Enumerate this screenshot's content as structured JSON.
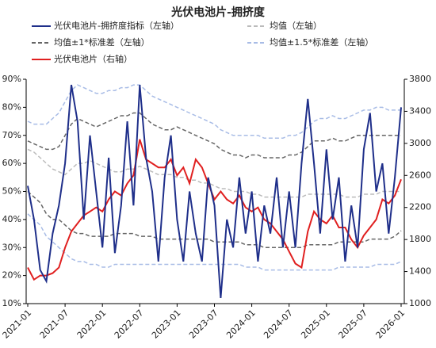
{
  "chart_data": {
    "type": "line",
    "title": "光伏电池片-拥挤度",
    "x": [
      "2021-01",
      "2021-02",
      "2021-03",
      "2021-04",
      "2021-05",
      "2021-06",
      "2021-07",
      "2021-08",
      "2021-09",
      "2021-10",
      "2021-11",
      "2021-12",
      "2022-01",
      "2022-02",
      "2022-03",
      "2022-04",
      "2022-05",
      "2022-06",
      "2022-07",
      "2022-08",
      "2022-09",
      "2022-10",
      "2022-11",
      "2022-12",
      "2023-01",
      "2023-02",
      "2023-03",
      "2023-04",
      "2023-05",
      "2023-06",
      "2023-07",
      "2023-08",
      "2023-09",
      "2023-10",
      "2023-11",
      "2023-12",
      "2024-01",
      "2024-02",
      "2024-03",
      "2024-04",
      "2024-05",
      "2024-06",
      "2024-07",
      "2024-08",
      "2024-09",
      "2024-10",
      "2024-11",
      "2024-12",
      "2025-01",
      "2025-02",
      "2025-03",
      "2025-04",
      "2025-05",
      "2025-06",
      "2025-07",
      "2025-08",
      "2025-09",
      "2025-10",
      "2025-11",
      "2025-12",
      "2026-01"
    ],
    "xticks": [
      "2021-01",
      "2021-07",
      "2022-01",
      "2022-07",
      "2023-01",
      "2023-07",
      "2024-01",
      "2024-07",
      "2025-01",
      "2025-07",
      "2026-01"
    ],
    "ylim": [
      10,
      90
    ],
    "yticks": [
      {
        "value": 10,
        "label": "10%"
      },
      {
        "value": 20,
        "label": "20%"
      },
      {
        "value": 30,
        "label": "30%"
      },
      {
        "value": 40,
        "label": "40%"
      },
      {
        "value": 50,
        "label": "50%"
      },
      {
        "value": 60,
        "label": "60%"
      },
      {
        "value": 70,
        "label": "70%"
      },
      {
        "value": 80,
        "label": "80%"
      },
      {
        "value": 90,
        "label": "90%"
      }
    ],
    "y2lim": [
      1000,
      3800
    ],
    "y2ticks": [
      1000,
      1400,
      1800,
      2200,
      2600,
      3000,
      3400,
      3800
    ],
    "series": [
      {
        "name": "光伏电池片-拥挤度指标（左轴）",
        "color": "#1f2f8a",
        "style": "solid",
        "values": [
          52,
          40,
          22,
          18,
          35,
          45,
          60,
          88,
          75,
          40,
          70,
          50,
          30,
          62,
          28,
          45,
          75,
          45,
          88,
          62,
          50,
          25,
          55,
          70,
          40,
          25,
          50,
          35,
          25,
          55,
          45,
          12,
          40,
          30,
          55,
          35,
          50,
          25,
          45,
          35,
          55,
          30,
          50,
          30,
          60,
          83,
          60,
          35,
          65,
          40,
          55,
          25,
          45,
          30,
          65,
          78,
          50,
          60,
          35,
          55,
          80
        ]
      },
      {
        "name": "均值（左轴）",
        "color": "#bbbbbb",
        "style": "dashed",
        "values": [
          65,
          64,
          62,
          60,
          58,
          57,
          56,
          58,
          60,
          60,
          61,
          60,
          59,
          58,
          57,
          57,
          58,
          58,
          59,
          58,
          57,
          56,
          56,
          56,
          55,
          55,
          54,
          54,
          53,
          53,
          52,
          51,
          51,
          50,
          50,
          50,
          49,
          49,
          48,
          48,
          48,
          48,
          48,
          48,
          48,
          49,
          49,
          49,
          49,
          49,
          49,
          48,
          48,
          48,
          49,
          49,
          49,
          50,
          50,
          50,
          50
        ]
      },
      {
        "name": "均值±1*标准差（左轴）",
        "color": "#666666",
        "style": "dashed",
        "values": [
          68,
          67,
          66,
          65,
          65,
          66,
          70,
          74,
          76,
          75,
          74,
          73,
          74,
          75,
          76,
          77,
          77,
          78,
          78,
          76,
          74,
          73,
          72,
          72,
          73,
          72,
          71,
          70,
          69,
          68,
          67,
          65,
          64,
          63,
          63,
          62,
          63,
          63,
          62,
          62,
          62,
          62,
          63,
          63,
          64,
          66,
          68,
          68,
          68,
          69,
          68,
          68,
          69,
          70,
          70,
          70,
          70,
          70,
          70,
          70,
          70
        ],
        "values_lower": [
          50,
          48,
          46,
          42,
          40,
          40,
          38,
          36,
          35,
          35,
          34,
          34,
          34,
          34,
          35,
          35,
          35,
          35,
          34,
          34,
          34,
          33,
          33,
          33,
          33,
          33,
          33,
          33,
          33,
          33,
          32,
          32,
          32,
          32,
          32,
          31,
          31,
          31,
          30,
          30,
          30,
          30,
          30,
          30,
          30,
          31,
          31,
          31,
          31,
          31,
          32,
          32,
          32,
          32,
          32,
          33,
          33,
          33,
          33,
          34,
          36
        ]
      },
      {
        "name": "均值±1.5*标准差（左轴）",
        "color": "#a8bce6",
        "style": "dashed",
        "values": [
          75,
          74,
          74,
          74,
          76,
          78,
          82,
          86,
          88,
          87,
          86,
          85,
          85,
          86,
          86,
          87,
          87,
          88,
          88,
          86,
          84,
          83,
          82,
          81,
          80,
          79,
          78,
          77,
          76,
          75,
          74,
          72,
          71,
          70,
          70,
          70,
          70,
          70,
          69,
          69,
          69,
          69,
          70,
          70,
          71,
          73,
          75,
          76,
          76,
          77,
          76,
          76,
          77,
          78,
          79,
          79,
          80,
          80,
          79,
          79,
          79
        ],
        "values_lower": [
          42,
          40,
          38,
          34,
          32,
          30,
          28,
          26,
          25,
          25,
          24,
          24,
          23,
          23,
          24,
          24,
          24,
          24,
          24,
          24,
          24,
          24,
          24,
          24,
          24,
          24,
          24,
          24,
          24,
          24,
          24,
          24,
          24,
          24,
          24,
          23,
          23,
          23,
          22,
          22,
          22,
          22,
          22,
          22,
          22,
          22,
          22,
          22,
          22,
          22,
          23,
          23,
          23,
          23,
          23,
          23,
          24,
          24,
          24,
          24,
          25
        ]
      },
      {
        "name": "光伏电池片（右轴）",
        "color": "#e02020",
        "style": "solid",
        "axis": "y2",
        "values": [
          1450,
          1300,
          1350,
          1350,
          1380,
          1450,
          1700,
          1900,
          2000,
          2100,
          2150,
          2200,
          2150,
          2300,
          2400,
          2350,
          2500,
          2600,
          3050,
          2800,
          2750,
          2700,
          2700,
          2800,
          2600,
          2700,
          2500,
          2800,
          2700,
          2500,
          2300,
          2400,
          2300,
          2250,
          2350,
          2200,
          2150,
          2200,
          2050,
          2000,
          1900,
          1800,
          1650,
          1500,
          1450,
          1900,
          2150,
          2050,
          2000,
          2100,
          1950,
          1950,
          1800,
          1700,
          1850,
          1950,
          2050,
          2300,
          2250,
          2350,
          2550
        ]
      }
    ]
  }
}
